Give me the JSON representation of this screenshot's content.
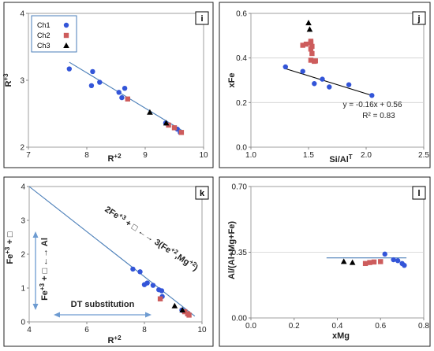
{
  "colors": {
    "Ch1": "#3355d8",
    "Ch2": "#cd5c5c",
    "Ch3": "#000000",
    "fit": "#4a7eb8",
    "arrow": "#6d9bd1"
  },
  "chart_data": [
    {
      "panel": "i",
      "type": "scatter",
      "xlabel": "R+2",
      "ylabel": "R+3",
      "xlim": [
        7,
        10
      ],
      "ylim": [
        2,
        4
      ],
      "xticks": [
        "7",
        "8",
        "9",
        "10"
      ],
      "yticks": [
        "2",
        "3",
        "4"
      ],
      "legend": [
        "Ch1",
        "Ch2",
        "Ch3"
      ],
      "series": [
        {
          "name": "Ch1",
          "marker": "circle",
          "points": [
            [
              7.7,
              3.17
            ],
            [
              8.1,
              3.13
            ],
            [
              8.08,
              2.92
            ],
            [
              8.22,
              2.97
            ],
            [
              8.55,
              2.82
            ],
            [
              8.65,
              2.88
            ],
            [
              8.6,
              2.74
            ],
            [
              9.35,
              2.36
            ],
            [
              9.55,
              2.27
            ],
            [
              9.6,
              2.22
            ]
          ]
        },
        {
          "name": "Ch2",
          "marker": "square",
          "points": [
            [
              8.7,
              2.72
            ],
            [
              9.4,
              2.33
            ],
            [
              9.5,
              2.29
            ],
            [
              9.62,
              2.22
            ]
          ]
        },
        {
          "name": "Ch3",
          "marker": "triangle",
          "points": [
            [
              9.08,
              2.52
            ],
            [
              9.36,
              2.36
            ]
          ]
        }
      ],
      "fit_line": [
        [
          7.7,
          3.27
        ],
        [
          9.65,
          2.24
        ]
      ]
    },
    {
      "panel": "j",
      "type": "scatter",
      "xlabel": "Si/Al",
      "xlabel_sup": "T",
      "ylabel": "xFe",
      "xlim": [
        1.0,
        2.5
      ],
      "ylim": [
        0.0,
        0.6
      ],
      "xticks": [
        "1.0",
        "1.5",
        "2.0",
        "2.5"
      ],
      "yticks": [
        "0.0",
        "0.2",
        "0.4",
        "0.6"
      ],
      "series": [
        {
          "name": "Ch1",
          "marker": "circle",
          "points": [
            [
              1.3,
              0.36
            ],
            [
              1.45,
              0.34
            ],
            [
              1.55,
              0.285
            ],
            [
              1.62,
              0.305
            ],
            [
              1.68,
              0.27
            ],
            [
              1.85,
              0.28
            ],
            [
              2.05,
              0.232
            ]
          ]
        },
        {
          "name": "Ch2",
          "marker": "square",
          "points": [
            [
              1.45,
              0.457
            ],
            [
              1.48,
              0.462
            ],
            [
              1.52,
              0.468
            ],
            [
              1.53,
              0.452
            ],
            [
              1.52,
              0.44
            ],
            [
              1.53,
              0.42
            ],
            [
              1.52,
              0.39
            ],
            [
              1.55,
              0.385
            ],
            [
              1.56,
              0.387
            ],
            [
              1.52,
              0.475
            ]
          ]
        },
        {
          "name": "Ch3",
          "marker": "triangle",
          "points": [
            [
              1.5,
              0.557
            ],
            [
              1.51,
              0.528
            ]
          ]
        }
      ],
      "fit_line": [
        [
          1.3,
          0.352
        ],
        [
          2.05,
          0.232
        ]
      ],
      "equation": "y = -0.16x + 0.56",
      "r2": "R² = 0.83"
    },
    {
      "panel": "k",
      "type": "scatter",
      "xlabel": "R+2",
      "ylabel": "Fe+3 + □",
      "xlim": [
        4,
        10
      ],
      "ylim": [
        0,
        4
      ],
      "xticks": [
        "4",
        "6",
        "8",
        "10"
      ],
      "yticks": [
        "0",
        "1",
        "2",
        "3",
        "4"
      ],
      "series": [
        {
          "name": "Ch1",
          "marker": "circle",
          "points": [
            [
              7.6,
              1.56
            ],
            [
              7.85,
              1.48
            ],
            [
              8.0,
              1.1
            ],
            [
              8.1,
              1.15
            ],
            [
              8.3,
              1.08
            ],
            [
              8.5,
              0.95
            ],
            [
              8.6,
              0.92
            ],
            [
              8.62,
              0.75
            ],
            [
              9.3,
              0.35
            ],
            [
              9.35,
              0.32
            ]
          ]
        },
        {
          "name": "Ch2",
          "marker": "square",
          "points": [
            [
              8.55,
              0.68
            ],
            [
              9.4,
              0.3
            ],
            [
              9.5,
              0.24
            ],
            [
              9.55,
              0.2
            ]
          ]
        },
        {
          "name": "Ch3",
          "marker": "triangle",
          "points": [
            [
              9.05,
              0.47
            ],
            [
              9.32,
              0.35
            ]
          ]
        }
      ],
      "fit_line": [
        [
          4.0,
          4.0
        ],
        [
          9.75,
          0.17
        ]
      ],
      "annotations": {
        "reaction": "2Fe+3 + □ ←→ 3(Fe+2,Mg+2)",
        "vertical": "Fe+3 + □ ←→ Al",
        "dt": "DT substitution"
      }
    },
    {
      "panel": "l",
      "type": "scatter",
      "xlabel": "xMg",
      "ylabel": "Al/(Al+Mg+Fe)",
      "xlim": [
        0.0,
        0.8
      ],
      "ylim": [
        0.0,
        0.7
      ],
      "xticks": [
        "0.0",
        "0.2",
        "0.4",
        "0.6",
        "0.8"
      ],
      "yticks": [
        "0.00",
        "0.35",
        "0.70"
      ],
      "series": [
        {
          "name": "Ch1",
          "marker": "circle",
          "points": [
            [
              0.62,
              0.34
            ],
            [
              0.66,
              0.31
            ],
            [
              0.68,
              0.305
            ],
            [
              0.7,
              0.29
            ],
            [
              0.71,
              0.28
            ]
          ]
        },
        {
          "name": "Ch2",
          "marker": "square",
          "points": [
            [
              0.53,
              0.29
            ],
            [
              0.55,
              0.295
            ],
            [
              0.57,
              0.298
            ],
            [
              0.6,
              0.3
            ]
          ]
        },
        {
          "name": "Ch3",
          "marker": "triangle",
          "points": [
            [
              0.43,
              0.3
            ],
            [
              0.47,
              0.295
            ]
          ]
        }
      ],
      "fit_line": [
        [
          0.35,
          0.32
        ],
        [
          0.72,
          0.32
        ]
      ]
    }
  ]
}
